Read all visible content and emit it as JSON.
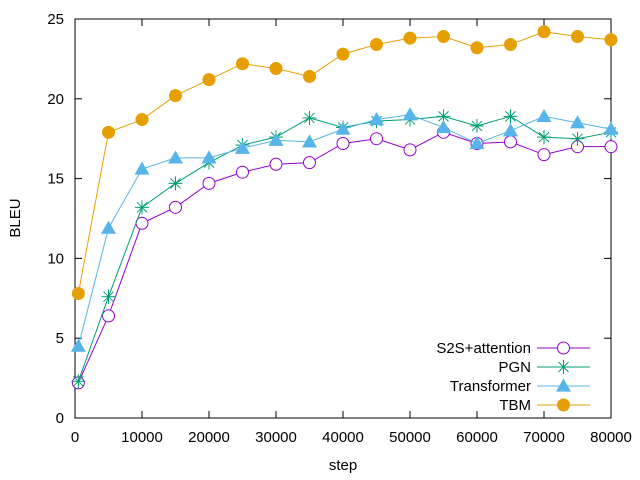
{
  "chart_data": {
    "type": "line",
    "title": "",
    "xlabel": "step",
    "ylabel": "BLEU",
    "xlim": [
      0,
      80000
    ],
    "ylim": [
      0,
      25
    ],
    "grid": false,
    "legend_position": "bottom-right",
    "x_ticks": [
      0,
      10000,
      20000,
      30000,
      40000,
      50000,
      60000,
      70000,
      80000
    ],
    "y_ticks": [
      0,
      5,
      10,
      15,
      20,
      25
    ],
    "x": [
      500,
      5000,
      10000,
      15000,
      20000,
      25000,
      30000,
      35000,
      40000,
      45000,
      50000,
      55000,
      60000,
      65000,
      70000,
      75000,
      80000
    ],
    "series": [
      {
        "name": "S2S+attention",
        "color": "#9400d3",
        "marker": "open-circle",
        "values": [
          2.2,
          6.4,
          12.2,
          13.2,
          14.7,
          15.4,
          15.9,
          16.0,
          17.2,
          17.5,
          16.8,
          17.9,
          17.2,
          17.3,
          16.5,
          17.0,
          17.0
        ]
      },
      {
        "name": "PGN",
        "color": "#009e73",
        "marker": "asterisk",
        "values": [
          2.3,
          7.6,
          13.2,
          14.7,
          16.0,
          17.1,
          17.6,
          18.8,
          18.2,
          18.6,
          18.7,
          18.9,
          18.3,
          18.9,
          17.6,
          17.5,
          17.9
        ]
      },
      {
        "name": "Transformer",
        "color": "#56b4e9",
        "marker": "filled-triangle",
        "values": [
          4.5,
          11.9,
          15.6,
          16.3,
          16.3,
          16.9,
          17.4,
          17.3,
          18.1,
          18.7,
          19.0,
          18.2,
          17.2,
          18.0,
          18.9,
          18.5,
          18.1
        ]
      },
      {
        "name": "TBM",
        "color": "#e69f00",
        "marker": "filled-circle",
        "values": [
          7.8,
          17.9,
          18.7,
          20.2,
          21.2,
          22.2,
          21.9,
          21.4,
          22.8,
          23.4,
          23.8,
          23.9,
          23.2,
          23.4,
          24.2,
          23.9,
          23.7
        ]
      }
    ]
  }
}
